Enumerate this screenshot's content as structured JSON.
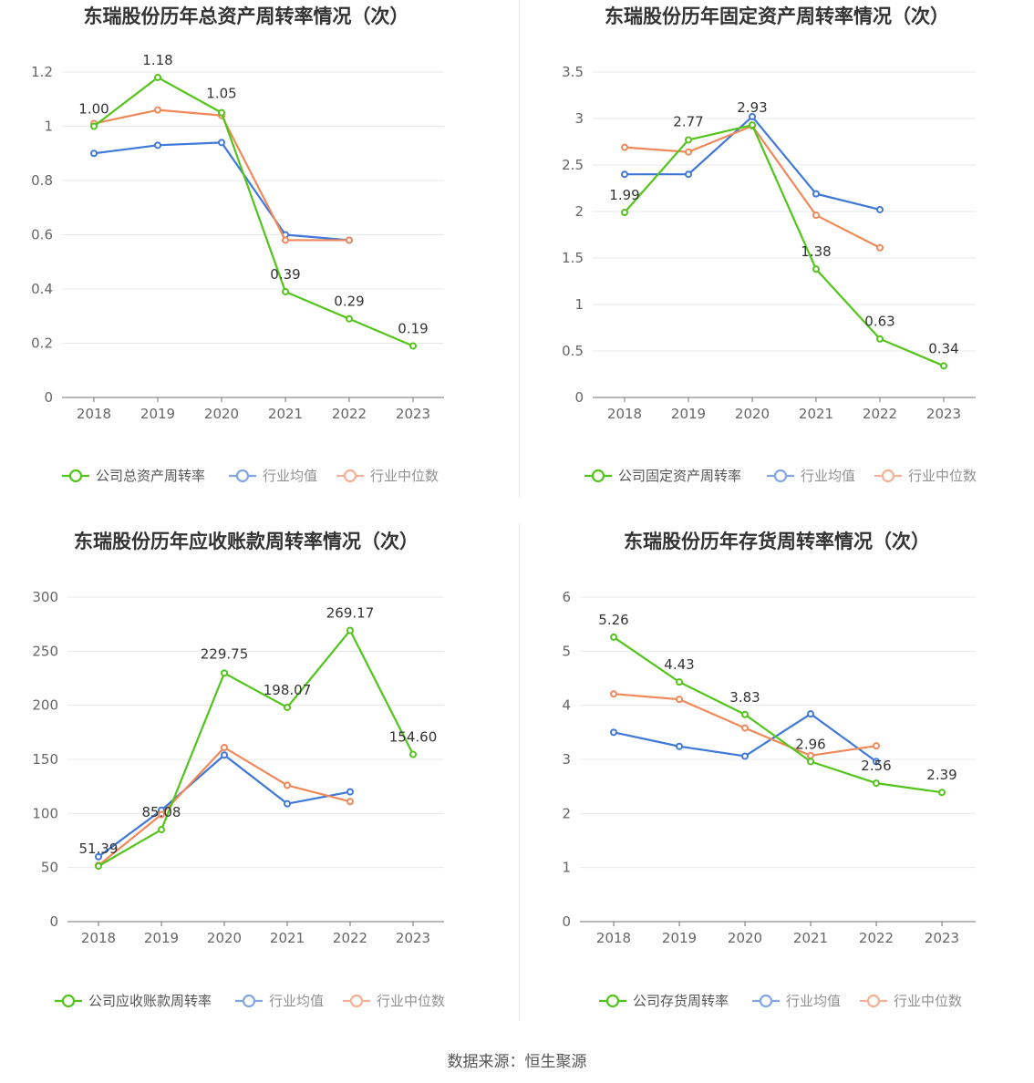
{
  "source_text": "数据来源：恒生聚源",
  "colors": {
    "company": "#52c41a",
    "avg": "#3f78d8",
    "median": "#f0885a"
  },
  "legend_common": {
    "avg": "行业均值",
    "median": "行业中位数"
  },
  "chart_data": [
    {
      "type": "line",
      "title": "东瑞股份历年总资产周转率情况（次）",
      "categories": [
        "2018",
        "2019",
        "2020",
        "2021",
        "2022",
        "2023"
      ],
      "ylim": [
        0,
        1.2
      ],
      "yticks": [
        "0",
        "0.2",
        "0.4",
        "0.6",
        "0.8",
        "1",
        "1.2"
      ],
      "series": [
        {
          "key": "company",
          "name": "公司总资产周转率",
          "values": [
            1.0,
            1.18,
            1.05,
            0.39,
            0.29,
            0.19
          ],
          "labels": [
            "1.00",
            "1.18",
            "1.05",
            "0.39",
            "0.29",
            "0.19"
          ]
        },
        {
          "key": "avg",
          "name": "行业均值",
          "values": [
            0.9,
            0.93,
            0.94,
            0.6,
            0.58,
            null
          ]
        },
        {
          "key": "median",
          "name": "行业中位数",
          "values": [
            1.01,
            1.06,
            1.04,
            0.58,
            0.58,
            null
          ]
        }
      ]
    },
    {
      "type": "line",
      "title": "东瑞股份历年固定资产周转率情况（次）",
      "categories": [
        "2018",
        "2019",
        "2020",
        "2021",
        "2022",
        "2023"
      ],
      "ylim": [
        0,
        3.5
      ],
      "yticks": [
        "0",
        "0.5",
        "1",
        "1.5",
        "2",
        "2.5",
        "3",
        "3.5"
      ],
      "series": [
        {
          "key": "company",
          "name": "公司固定资产周转率",
          "values": [
            1.99,
            2.77,
            2.93,
            1.38,
            0.63,
            0.34
          ],
          "labels": [
            "1.99",
            "2.77",
            "2.93",
            "1.38",
            "0.63",
            "0.34"
          ]
        },
        {
          "key": "avg",
          "name": "行业均值",
          "values": [
            2.4,
            2.4,
            3.02,
            2.19,
            2.02,
            null
          ]
        },
        {
          "key": "median",
          "name": "行业中位数",
          "values": [
            2.69,
            2.64,
            2.92,
            1.96,
            1.61,
            null
          ]
        }
      ]
    },
    {
      "type": "line",
      "title": "东瑞股份历年应收账款周转率情况（次）",
      "categories": [
        "2018",
        "2019",
        "2020",
        "2021",
        "2022",
        "2023"
      ],
      "ylim": [
        0,
        300
      ],
      "yticks": [
        "0",
        "50",
        "100",
        "150",
        "200",
        "250",
        "300"
      ],
      "series": [
        {
          "key": "company",
          "name": "公司应收账款周转率",
          "values": [
            51.39,
            85.08,
            229.75,
            198.07,
            269.17,
            154.6
          ],
          "labels": [
            "51.39",
            "85.08",
            "229.75",
            "198.07",
            "269.17",
            "154.60"
          ]
        },
        {
          "key": "avg",
          "name": "行业均值",
          "values": [
            60,
            103,
            154,
            109,
            120,
            null
          ]
        },
        {
          "key": "median",
          "name": "行业中位数",
          "values": [
            52,
            99,
            161,
            126,
            111,
            null
          ]
        }
      ]
    },
    {
      "type": "line",
      "title": "东瑞股份历年存货周转率情况（次）",
      "categories": [
        "2018",
        "2019",
        "2020",
        "2021",
        "2022",
        "2023"
      ],
      "ylim": [
        0,
        6
      ],
      "yticks": [
        "0",
        "1",
        "2",
        "3",
        "4",
        "5",
        "6"
      ],
      "series": [
        {
          "key": "company",
          "name": "公司存货周转率",
          "values": [
            5.26,
            4.43,
            3.83,
            2.96,
            2.56,
            2.39
          ],
          "labels": [
            "5.26",
            "4.43",
            "3.83",
            "2.96",
            "2.56",
            "2.39"
          ]
        },
        {
          "key": "avg",
          "name": "行业均值",
          "values": [
            3.5,
            3.24,
            3.06,
            3.84,
            2.96,
            null
          ]
        },
        {
          "key": "median",
          "name": "行业中位数",
          "values": [
            4.21,
            4.11,
            3.58,
            3.07,
            3.25,
            null
          ]
        }
      ]
    }
  ]
}
